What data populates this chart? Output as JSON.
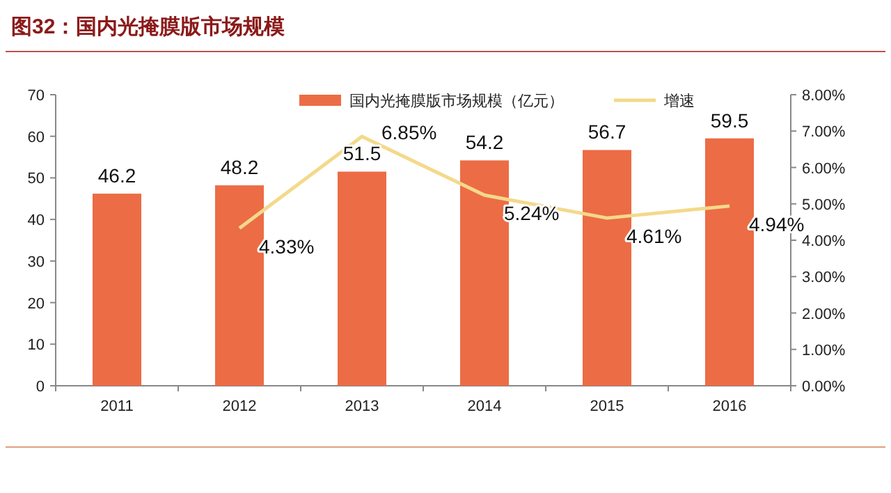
{
  "chart_data": {
    "type": "bar",
    "title": "图32：国内光掩膜版市场规模",
    "categories": [
      "2011",
      "2012",
      "2013",
      "2014",
      "2015",
      "2016"
    ],
    "series": [
      {
        "name": "国内光掩膜版市场规模（亿元）",
        "type": "bar",
        "color": "#ec6c45",
        "values": [
          46.2,
          48.2,
          51.5,
          54.2,
          56.7,
          59.5
        ],
        "value_labels": [
          "46.2",
          "48.2",
          "51.5",
          "54.2",
          "56.7",
          "59.5"
        ]
      },
      {
        "name": "增速",
        "type": "line",
        "axis": "y2",
        "color": "#f3d98a",
        "values": [
          null,
          4.33,
          6.85,
          5.24,
          4.61,
          4.94
        ],
        "value_labels": [
          null,
          "4.33%",
          "6.85%",
          "5.24%",
          "4.61%",
          "4.94%"
        ]
      }
    ],
    "ylim": [
      0,
      70
    ],
    "yticks": [
      0,
      10,
      20,
      30,
      40,
      50,
      60,
      70
    ],
    "y2lim": [
      0,
      8
    ],
    "y2ticks": [
      {
        "value": 0,
        "label": "0.00%"
      },
      {
        "value": 1,
        "label": "1.00%"
      },
      {
        "value": 2,
        "label": "2.00%"
      },
      {
        "value": 3,
        "label": "3.00%"
      },
      {
        "value": 4,
        "label": "4.00%"
      },
      {
        "value": 5,
        "label": "5.00%"
      },
      {
        "value": 6,
        "label": "6.00%"
      },
      {
        "value": 7,
        "label": "7.00%"
      },
      {
        "value": 8,
        "label": "8.00%"
      }
    ],
    "legend": "top",
    "grid": false
  }
}
